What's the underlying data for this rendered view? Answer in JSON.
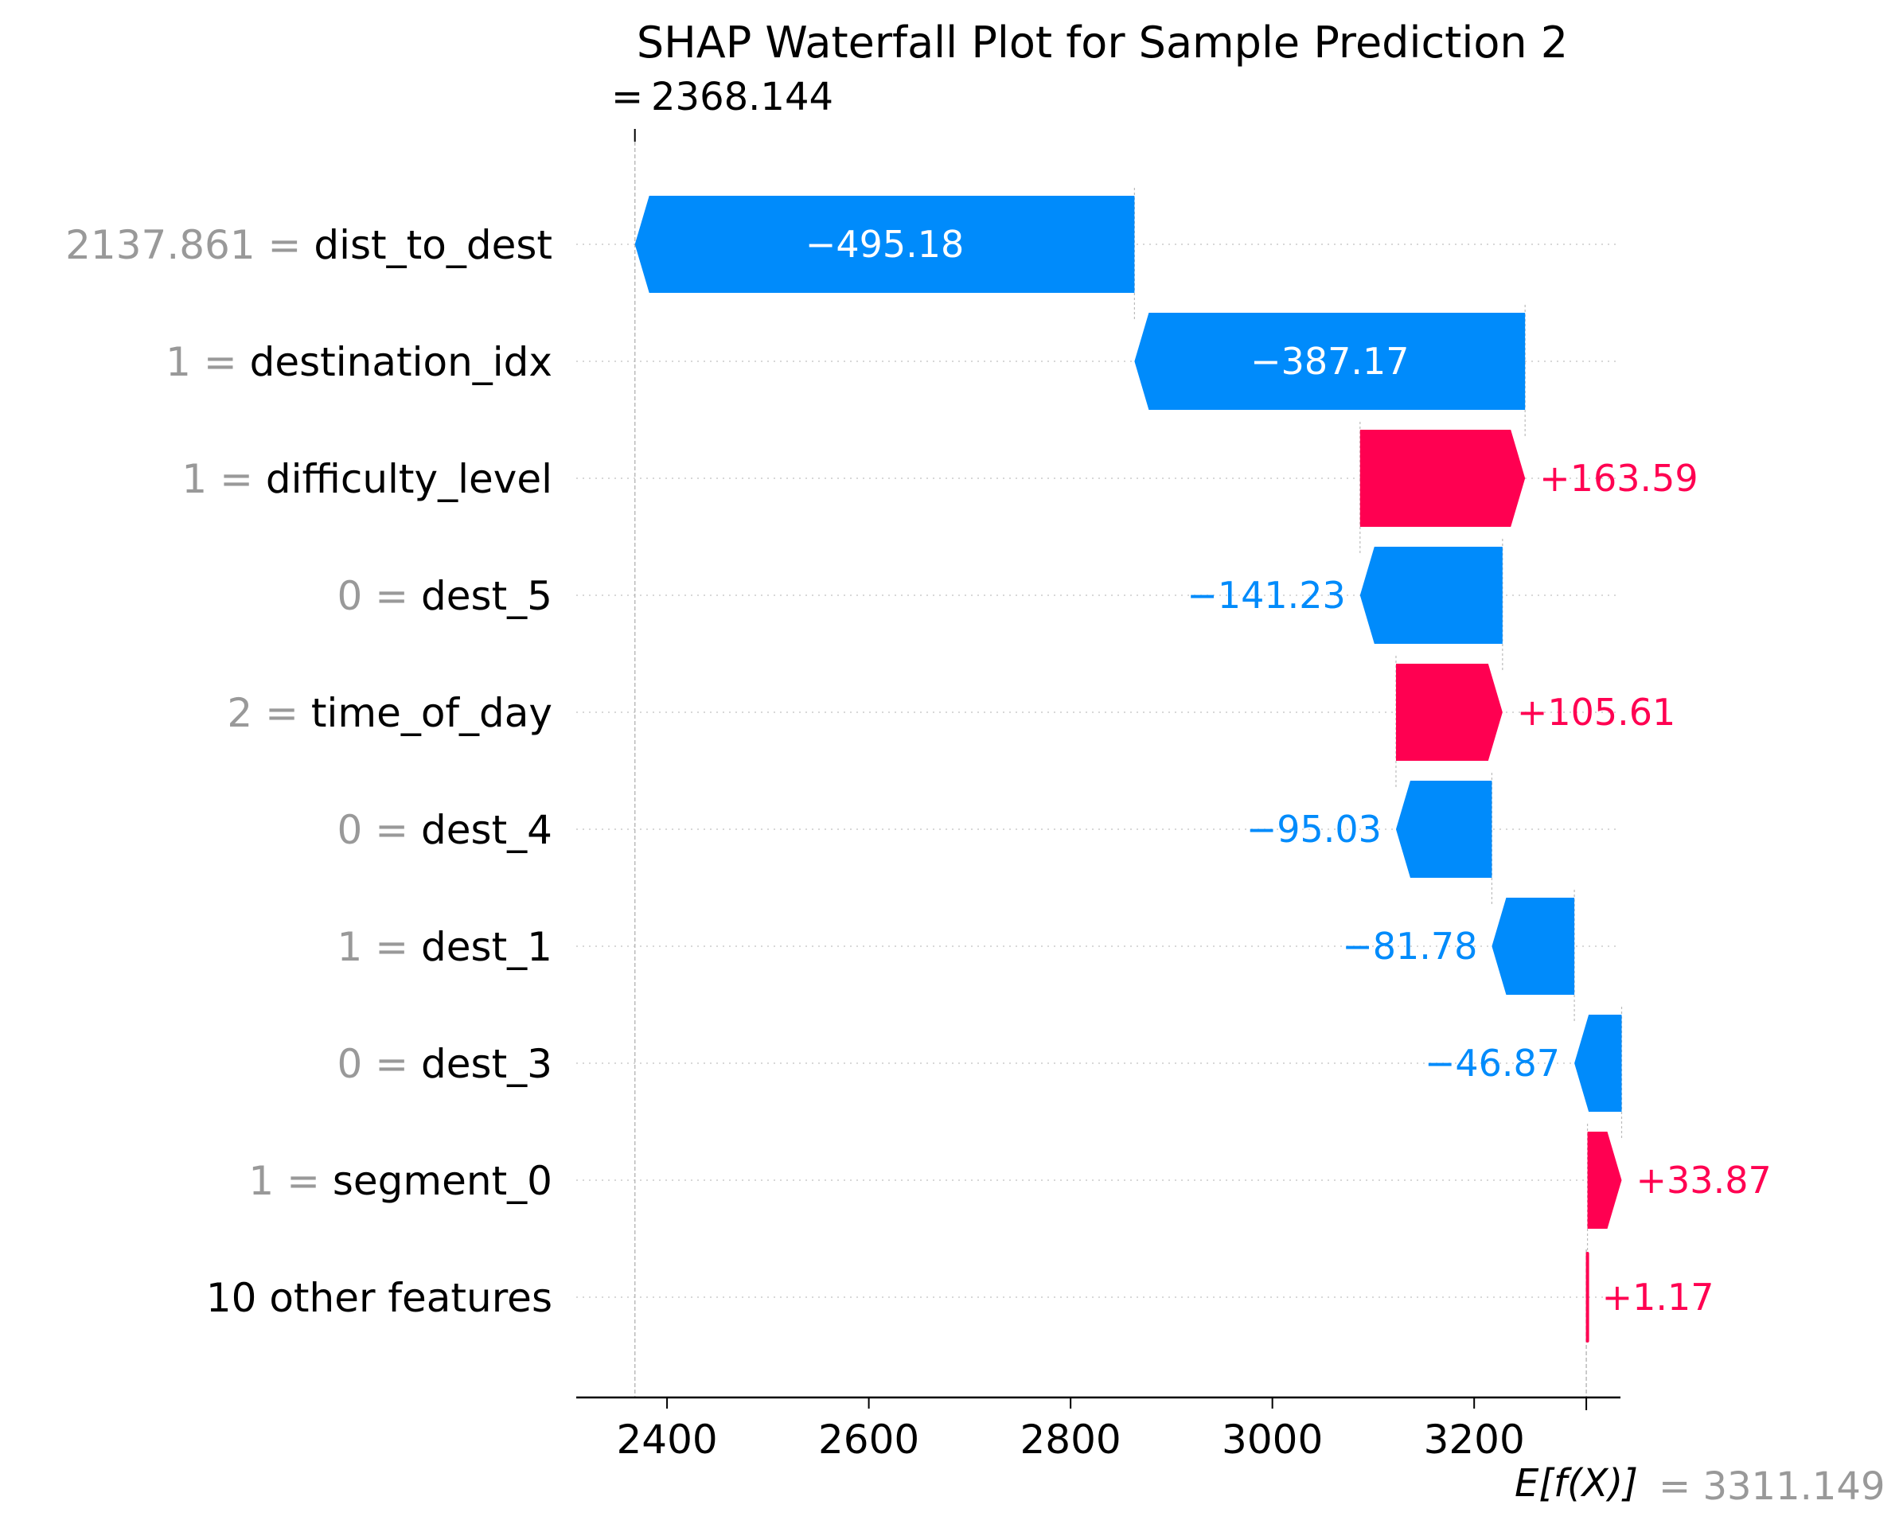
{
  "chart_data": {
    "type": "waterfall",
    "title": "SHAP Waterfall Plot for Sample Prediction 2",
    "base_value_label": "E[f(X)]",
    "base_value_text": "= 3311.149",
    "base_value": 3311.149,
    "output_label_prefix": "=",
    "output_value_text": "2368.144",
    "output_value": 2368.144,
    "xlim": [
      2310,
      3345
    ],
    "x_ticks": [
      2400,
      2600,
      2800,
      3000,
      3200
    ],
    "features": [
      {
        "value": "2137.861",
        "name": "dist_to_dest",
        "shap": -495.18,
        "label": "−495.18"
      },
      {
        "value": "1",
        "name": "destination_idx",
        "shap": -387.17,
        "label": "−387.17"
      },
      {
        "value": "1",
        "name": "difficulty_level",
        "shap": 163.59,
        "label": "+163.59"
      },
      {
        "value": "0",
        "name": "dest_5",
        "shap": -141.23,
        "label": "−141.23"
      },
      {
        "value": "2",
        "name": "time_of_day",
        "shap": 105.61,
        "label": "+105.61"
      },
      {
        "value": "0",
        "name": "dest_4",
        "shap": -95.03,
        "label": "−95.03"
      },
      {
        "value": "1",
        "name": "dest_1",
        "shap": -81.78,
        "label": "−81.78"
      },
      {
        "value": "0",
        "name": "dest_3",
        "shap": -46.87,
        "label": "−46.87"
      },
      {
        "value": "1",
        "name": "segment_0",
        "shap": 33.87,
        "label": "+33.87"
      },
      {
        "value": "",
        "name": "10 other features",
        "shap": 1.17,
        "label": "+1.17"
      }
    ],
    "colors": {
      "positive": "#ff0051",
      "negative": "#008bfb",
      "gray": "#999999"
    }
  }
}
